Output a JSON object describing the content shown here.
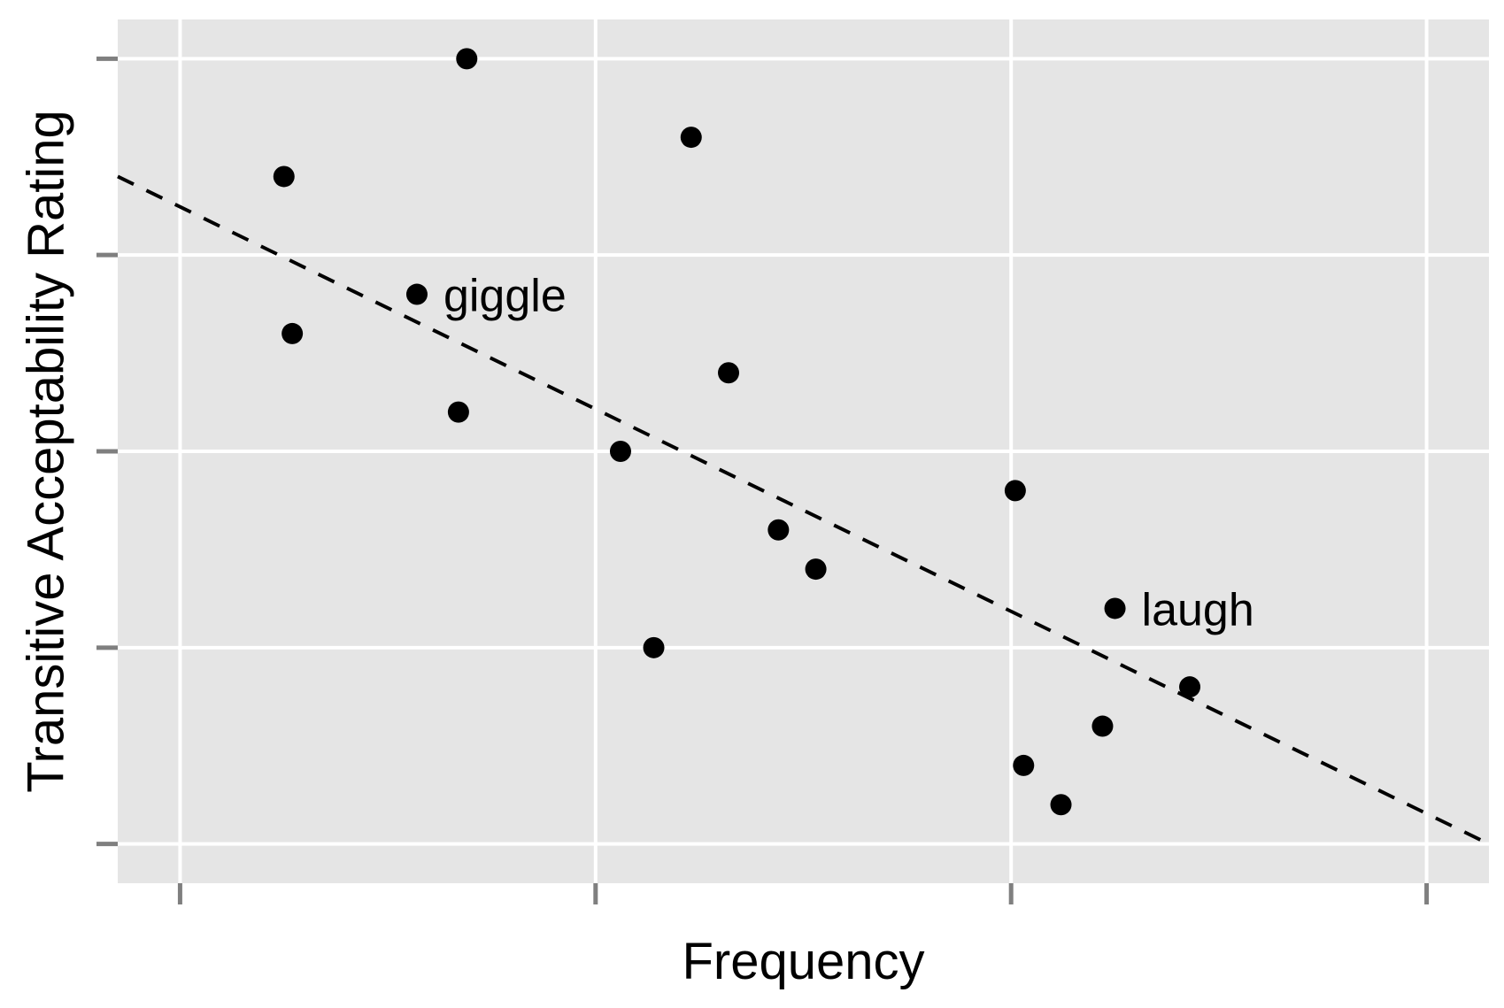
{
  "chart_data": {
    "type": "scatter",
    "title": "",
    "xlabel": "Frequency",
    "ylabel": "Transitive Acceptability Rating",
    "xlim": [
      -0.15,
      3.15
    ],
    "ylim": [
      -0.2,
      4.2
    ],
    "xticks": [
      0,
      1,
      2,
      3
    ],
    "yticks": [
      0,
      1,
      2,
      3,
      4
    ],
    "tick_labels_visible": false,
    "grid": true,
    "panel_background": "#e5e5e5",
    "grid_color": "#ffffff",
    "point_color": "#000000",
    "line_color": "#000000",
    "points": [
      {
        "x": 0.25,
        "y": 3.4
      },
      {
        "x": 0.27,
        "y": 2.6
      },
      {
        "x": 0.57,
        "y": 2.8,
        "label": "giggle"
      },
      {
        "x": 0.67,
        "y": 2.2
      },
      {
        "x": 0.69,
        "y": 4.0
      },
      {
        "x": 1.06,
        "y": 2.0
      },
      {
        "x": 1.14,
        "y": 1.0
      },
      {
        "x": 1.23,
        "y": 3.6
      },
      {
        "x": 1.32,
        "y": 2.4
      },
      {
        "x": 1.44,
        "y": 1.6
      },
      {
        "x": 1.53,
        "y": 1.4
      },
      {
        "x": 2.01,
        "y": 1.8
      },
      {
        "x": 2.03,
        "y": 0.4
      },
      {
        "x": 2.12,
        "y": 0.2
      },
      {
        "x": 2.22,
        "y": 0.6
      },
      {
        "x": 2.25,
        "y": 1.2,
        "label": "laugh"
      },
      {
        "x": 2.43,
        "y": 0.8
      }
    ],
    "trend_line": {
      "style": "dashed",
      "x": [
        -0.15,
        3.15
      ],
      "y": [
        3.4,
        0.0
      ]
    }
  }
}
